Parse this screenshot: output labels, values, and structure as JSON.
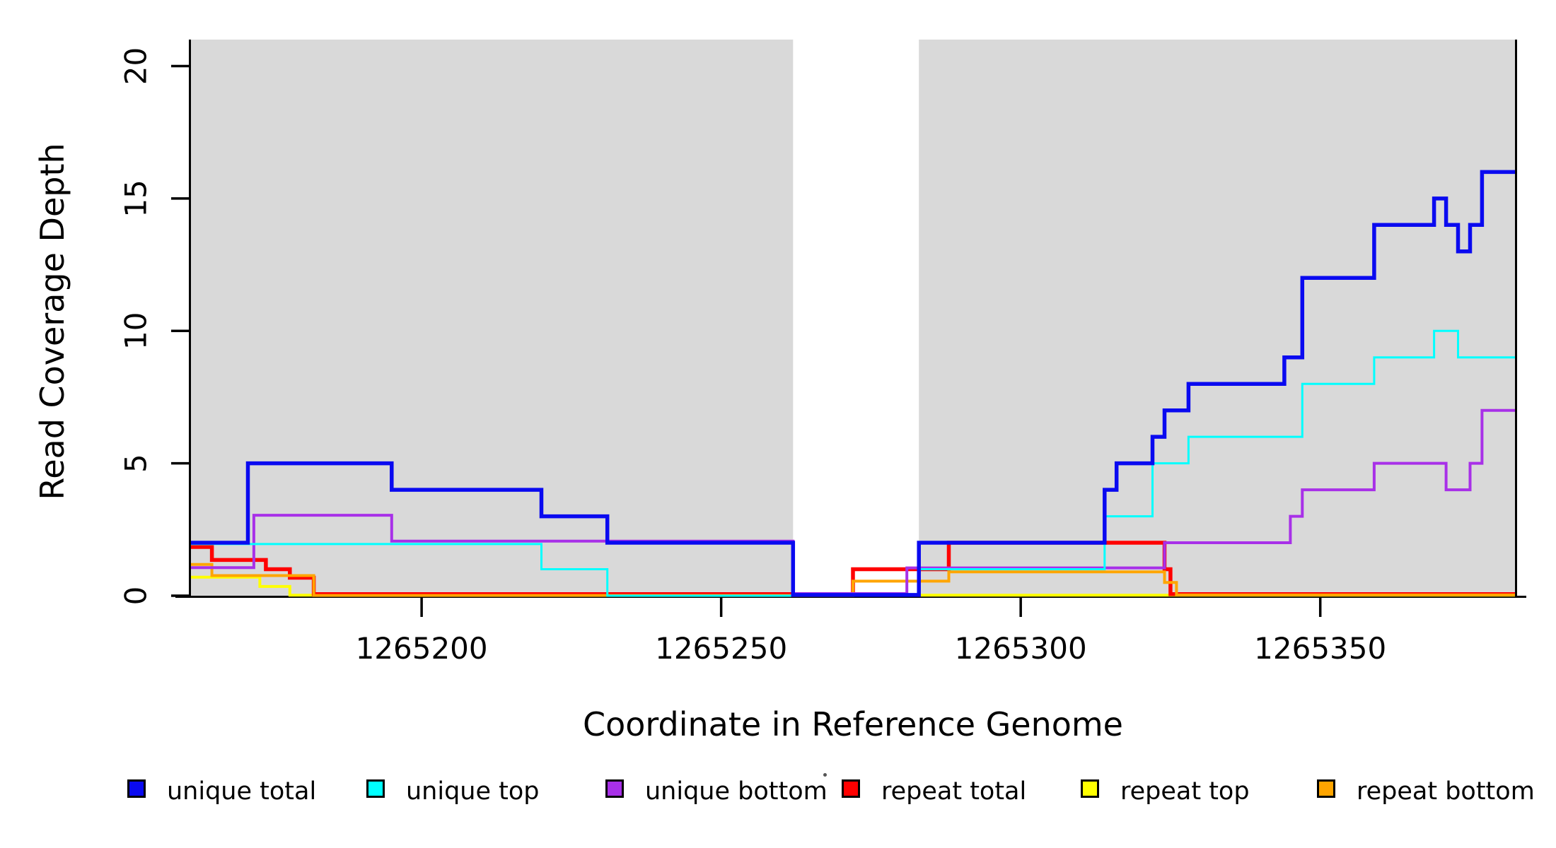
{
  "figure": {
    "x_axis_title": "Coordinate in Reference Genome",
    "y_axis_title": "Read Coverage Depth",
    "background_color": "#ffffff",
    "shaded_region_color": "#D9D9D9",
    "axis_color": "#000000"
  },
  "legend": {
    "items": [
      {
        "label": "unique total",
        "color": "#0A0AF0"
      },
      {
        "label": "unique top",
        "color": "#00FFFF"
      },
      {
        "label": "unique bottom",
        "color": "#A830E8"
      },
      {
        "label": "repeat total",
        "color": "#FF0000"
      },
      {
        "label": "repeat top",
        "color": "#FFFF00"
      },
      {
        "label": "repeat bottom",
        "color": "#FFA500"
      }
    ]
  },
  "chart_data": {
    "type": "line",
    "subtype": "step-coverage-plot",
    "title": "",
    "xlabel": "Coordinate in Reference Genome",
    "ylabel": "Read Coverage Depth",
    "xlim": [
      1265161.5,
      1265382.5
    ],
    "ylim": [
      0,
      21
    ],
    "x_ticks": [
      1265200,
      1265250,
      1265300,
      1265350
    ],
    "y_ticks": [
      0,
      5,
      10,
      15,
      20
    ],
    "grid": false,
    "legend_position": "bottom",
    "shaded_regions": [
      {
        "x0": 1265161.5,
        "x1": 1265262,
        "color": "#D9D9D9"
      },
      {
        "x0": 1265283,
        "x1": 1265382.5,
        "color": "#D9D9D9"
      }
    ],
    "note": "Step lines are drawn with slight vertical jitter in the source figure; levels below are the drawn values (integer read depths with small offsets).",
    "series": [
      {
        "name": "unique total",
        "color": "#0A0AF0",
        "width": 5.5,
        "points": [
          [
            1265161.5,
            2.0
          ],
          [
            1265171,
            5.0
          ],
          [
            1265195,
            4.0
          ],
          [
            1265220,
            3.0
          ],
          [
            1265231,
            2.0
          ],
          [
            1265262,
            0.03
          ],
          [
            1265283,
            2.0
          ],
          [
            1265314,
            4.0
          ],
          [
            1265316,
            5.0
          ],
          [
            1265322,
            6.0
          ],
          [
            1265324,
            7.0
          ],
          [
            1265328,
            8.0
          ],
          [
            1265344,
            9.0
          ],
          [
            1265347,
            12.0
          ],
          [
            1265359,
            14.0
          ],
          [
            1265369,
            15.0
          ],
          [
            1265371,
            14.0
          ],
          [
            1265373,
            13.0
          ],
          [
            1265375,
            14.0
          ],
          [
            1265377,
            16.0
          ]
        ]
      },
      {
        "name": "unique top",
        "color": "#00FFFF",
        "width": 3,
        "points": [
          [
            1265161.5,
            1.95
          ],
          [
            1265220,
            1.0
          ],
          [
            1265231,
            0.0
          ],
          [
            1265283,
            1.0
          ],
          [
            1265314,
            3.0
          ],
          [
            1265322,
            5.0
          ],
          [
            1265328,
            6.0
          ],
          [
            1265347,
            8.0
          ],
          [
            1265359,
            9.0
          ],
          [
            1265369,
            10.0
          ],
          [
            1265373,
            9.0
          ]
        ]
      },
      {
        "name": "unique bottom",
        "color": "#A830E8",
        "width": 4,
        "points": [
          [
            1265161.5,
            1.06
          ],
          [
            1265172,
            3.04
          ],
          [
            1265195,
            2.06
          ],
          [
            1265262,
            0.08
          ],
          [
            1265281,
            1.05
          ],
          [
            1265324,
            2.0
          ],
          [
            1265345,
            3.0
          ],
          [
            1265347,
            4.0
          ],
          [
            1265359,
            5.0
          ],
          [
            1265371,
            4.0
          ],
          [
            1265375,
            5.0
          ],
          [
            1265377,
            7.0
          ]
        ]
      },
      {
        "name": "repeat total",
        "color": "#FF0000",
        "width": 5.5,
        "points": [
          [
            1265161.5,
            1.84
          ],
          [
            1265165,
            1.35
          ],
          [
            1265174,
            1.0
          ],
          [
            1265178,
            0.68
          ],
          [
            1265182,
            0.06
          ],
          [
            1265272,
            1.0
          ],
          [
            1265288,
            2.0
          ],
          [
            1265324,
            1.0
          ],
          [
            1265325,
            0.06
          ]
        ]
      },
      {
        "name": "repeat top",
        "color": "#FFFF00",
        "width": 4,
        "points": [
          [
            1265161.5,
            0.7
          ],
          [
            1265173,
            0.35
          ],
          [
            1265178,
            0.02
          ]
        ]
      },
      {
        "name": "repeat bottom",
        "color": "#FFA500",
        "width": 4,
        "points": [
          [
            1265161.5,
            1.18
          ],
          [
            1265165,
            0.76
          ],
          [
            1265182,
            0.01
          ],
          [
            1265272,
            0.55
          ],
          [
            1265288,
            0.9
          ],
          [
            1265324,
            0.5
          ],
          [
            1265326,
            0.03
          ]
        ]
      }
    ],
    "draw_order": [
      4,
      3,
      5,
      2,
      1,
      0
    ]
  },
  "layout_values": {
    "legend_item_lefts": [
      180,
      518,
      856,
      1190,
      1528,
      1862
    ]
  }
}
